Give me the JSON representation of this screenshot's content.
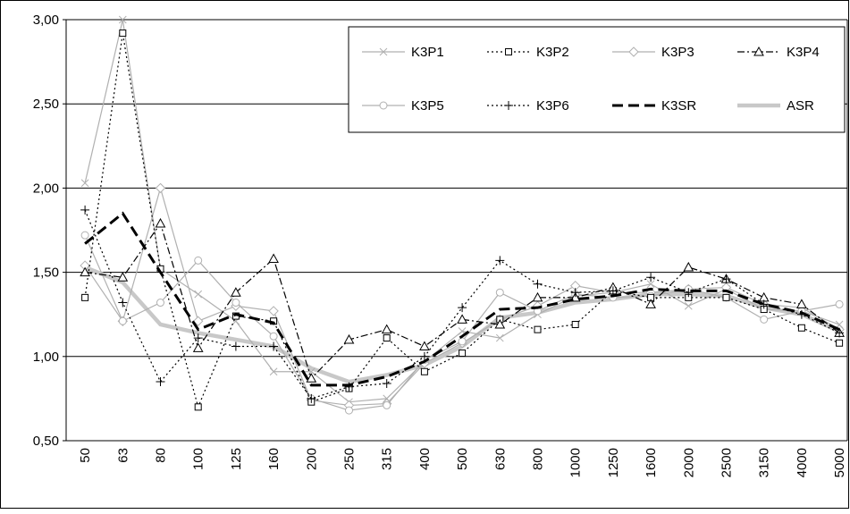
{
  "chart_data": {
    "type": "line",
    "categories": [
      "50",
      "63",
      "80",
      "100",
      "125",
      "160",
      "200",
      "250",
      "315",
      "400",
      "500",
      "630",
      "800",
      "1000",
      "1250",
      "1600",
      "2000",
      "2500",
      "3150",
      "4000",
      "5000"
    ],
    "ylim": [
      0.5,
      3.0
    ],
    "yticks": [
      {
        "value": 0.5,
        "label": "0,50"
      },
      {
        "value": 1.0,
        "label": "1,00"
      },
      {
        "value": 1.5,
        "label": "1,50"
      },
      {
        "value": 2.0,
        "label": "2,00"
      },
      {
        "value": 2.5,
        "label": "2,50"
      },
      {
        "value": 3.0,
        "label": "3,00"
      }
    ],
    "grid": true,
    "legend": "top-right",
    "series": [
      {
        "name": "K3P1",
        "color": "#b0b0b0",
        "dash": "solid",
        "width": 1.2,
        "marker": "x",
        "values": [
          2.03,
          3.0,
          1.52,
          1.37,
          1.21,
          0.91,
          0.91,
          0.73,
          0.75,
          0.97,
          1.15,
          1.11,
          1.25,
          1.36,
          1.38,
          1.43,
          1.3,
          1.4,
          1.28,
          1.27,
          1.19
        ]
      },
      {
        "name": "K3P2",
        "color": "#000000",
        "dash": "dotted",
        "width": 1.2,
        "marker": "square",
        "values": [
          1.35,
          2.92,
          1.52,
          0.7,
          1.24,
          1.21,
          0.73,
          0.81,
          1.11,
          0.91,
          1.02,
          1.22,
          1.16,
          1.19,
          1.39,
          1.35,
          1.35,
          1.35,
          1.28,
          1.17,
          1.08
        ]
      },
      {
        "name": "K3P3",
        "color": "#b0b0b0",
        "dash": "solid",
        "width": 1.2,
        "marker": "diamond",
        "values": [
          1.54,
          1.21,
          2.0,
          1.21,
          1.3,
          1.27,
          0.74,
          0.71,
          0.72,
          0.96,
          1.08,
          1.22,
          1.3,
          1.42,
          1.38,
          1.38,
          1.4,
          1.41,
          1.31,
          1.29,
          1.16
        ]
      },
      {
        "name": "K3P4",
        "color": "#000000",
        "dash": "dashdot",
        "width": 1.2,
        "marker": "triangle",
        "values": [
          1.5,
          1.47,
          1.79,
          1.05,
          1.38,
          1.58,
          0.87,
          1.1,
          1.16,
          1.06,
          1.22,
          1.19,
          1.35,
          1.35,
          1.41,
          1.31,
          1.53,
          1.46,
          1.35,
          1.31,
          1.14
        ]
      },
      {
        "name": "K3P5",
        "color": "#b0b0b0",
        "dash": "solid",
        "width": 1.2,
        "marker": "circle",
        "values": [
          1.72,
          1.21,
          1.32,
          1.57,
          1.32,
          1.12,
          0.75,
          0.68,
          0.71,
          0.98,
          1.09,
          1.38,
          1.27,
          1.37,
          1.35,
          1.36,
          1.4,
          1.35,
          1.22,
          1.27,
          1.31
        ]
      },
      {
        "name": "K3P6",
        "color": "#000000",
        "dash": "dotted",
        "width": 1.2,
        "marker": "plus",
        "values": [
          1.87,
          1.32,
          0.85,
          1.11,
          1.06,
          1.06,
          0.75,
          0.82,
          0.84,
          1.0,
          1.29,
          1.57,
          1.43,
          1.38,
          1.39,
          1.47,
          1.38,
          1.46,
          1.31,
          1.25,
          1.14
        ]
      },
      {
        "name": "K3SR",
        "color": "#000000",
        "dash": "dashed",
        "width": 3,
        "marker": null,
        "values": [
          1.67,
          1.85,
          1.5,
          1.16,
          1.25,
          1.2,
          0.83,
          0.83,
          0.88,
          0.97,
          1.12,
          1.28,
          1.29,
          1.34,
          1.36,
          1.4,
          1.39,
          1.39,
          1.31,
          1.26,
          1.16
        ]
      },
      {
        "name": "ASR",
        "color": "#c8c8c8",
        "dash": "solid",
        "width": 4.5,
        "marker": null,
        "values": [
          1.53,
          1.44,
          1.19,
          1.14,
          1.1,
          1.06,
          0.93,
          0.85,
          0.89,
          0.95,
          1.06,
          1.23,
          1.26,
          1.32,
          1.34,
          1.37,
          1.37,
          1.36,
          1.29,
          1.25,
          1.15
        ]
      }
    ]
  }
}
